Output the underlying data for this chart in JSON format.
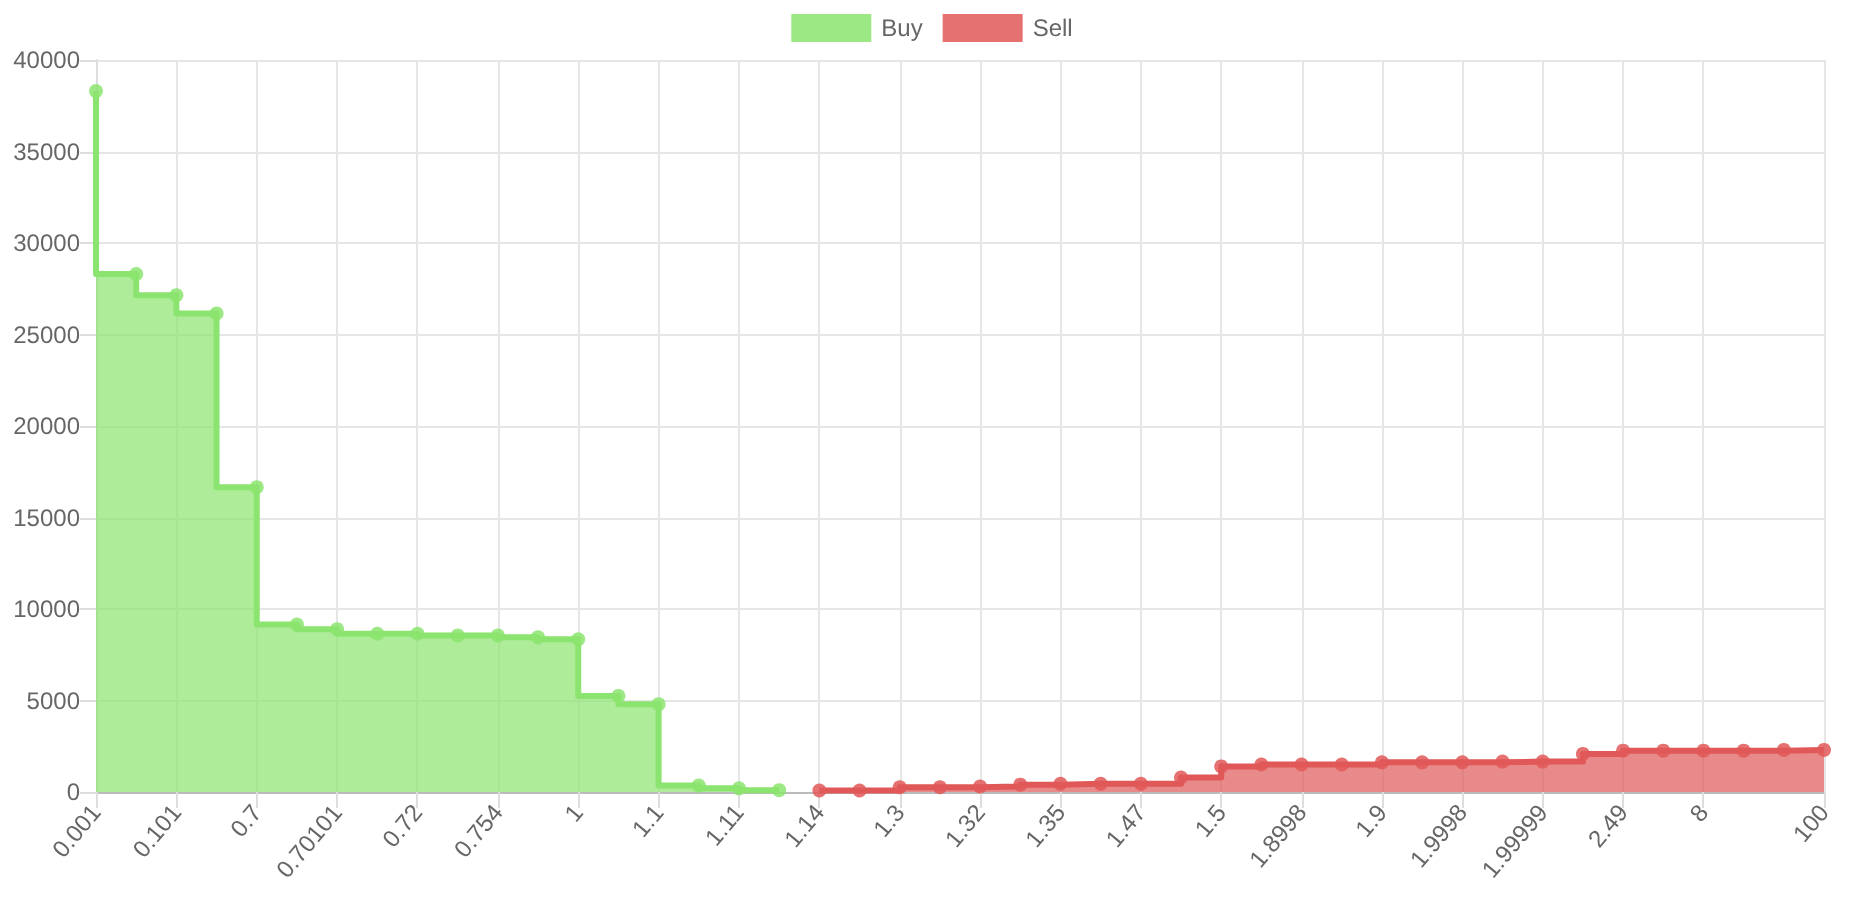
{
  "chart_data": {
    "type": "step",
    "categories": [
      "0.001",
      null,
      "0.101",
      null,
      "0.7",
      null,
      "0.70101",
      null,
      "0.72",
      null,
      "0.754",
      null,
      "1",
      null,
      "1.1",
      null,
      "1.11",
      null,
      "1.14",
      null,
      "1.3",
      null,
      "1.32",
      null,
      "1.35",
      null,
      "1.47",
      null,
      "1.5",
      null,
      "1.8998",
      null,
      "1.9",
      null,
      "1.9998",
      null,
      "1.99999",
      null,
      "2.49",
      null,
      "8",
      null,
      null,
      "100"
    ],
    "series": [
      {
        "name": "Buy",
        "color": "#8be46f",
        "values": [
          38300,
          28300,
          27150,
          26150,
          16650,
          9150,
          8900,
          8650,
          8650,
          8550,
          8550,
          8450,
          8350,
          5250,
          4800,
          350,
          200,
          100,
          null,
          null,
          null,
          null,
          null,
          null,
          null,
          null,
          null,
          null,
          null,
          null,
          null,
          null,
          null,
          null,
          null,
          null,
          null,
          null,
          null,
          null,
          null,
          null,
          null,
          null
        ]
      },
      {
        "name": "Sell",
        "color": "#e05858",
        "values": [
          null,
          null,
          null,
          null,
          null,
          null,
          null,
          null,
          null,
          null,
          null,
          null,
          null,
          null,
          null,
          null,
          null,
          null,
          80,
          80,
          260,
          260,
          300,
          400,
          450,
          450,
          450,
          790,
          1400,
          1500,
          1500,
          1500,
          1620,
          1620,
          1620,
          1660,
          1660,
          2080,
          2260,
          2260,
          2260,
          2260,
          2300,
          2300
        ]
      }
    ],
    "ylim": [
      0,
      40000
    ],
    "yticks": [
      0,
      5000,
      10000,
      15000,
      20000,
      25000,
      30000,
      35000,
      40000
    ],
    "grid": true,
    "legend": "top",
    "marker": "circle"
  }
}
